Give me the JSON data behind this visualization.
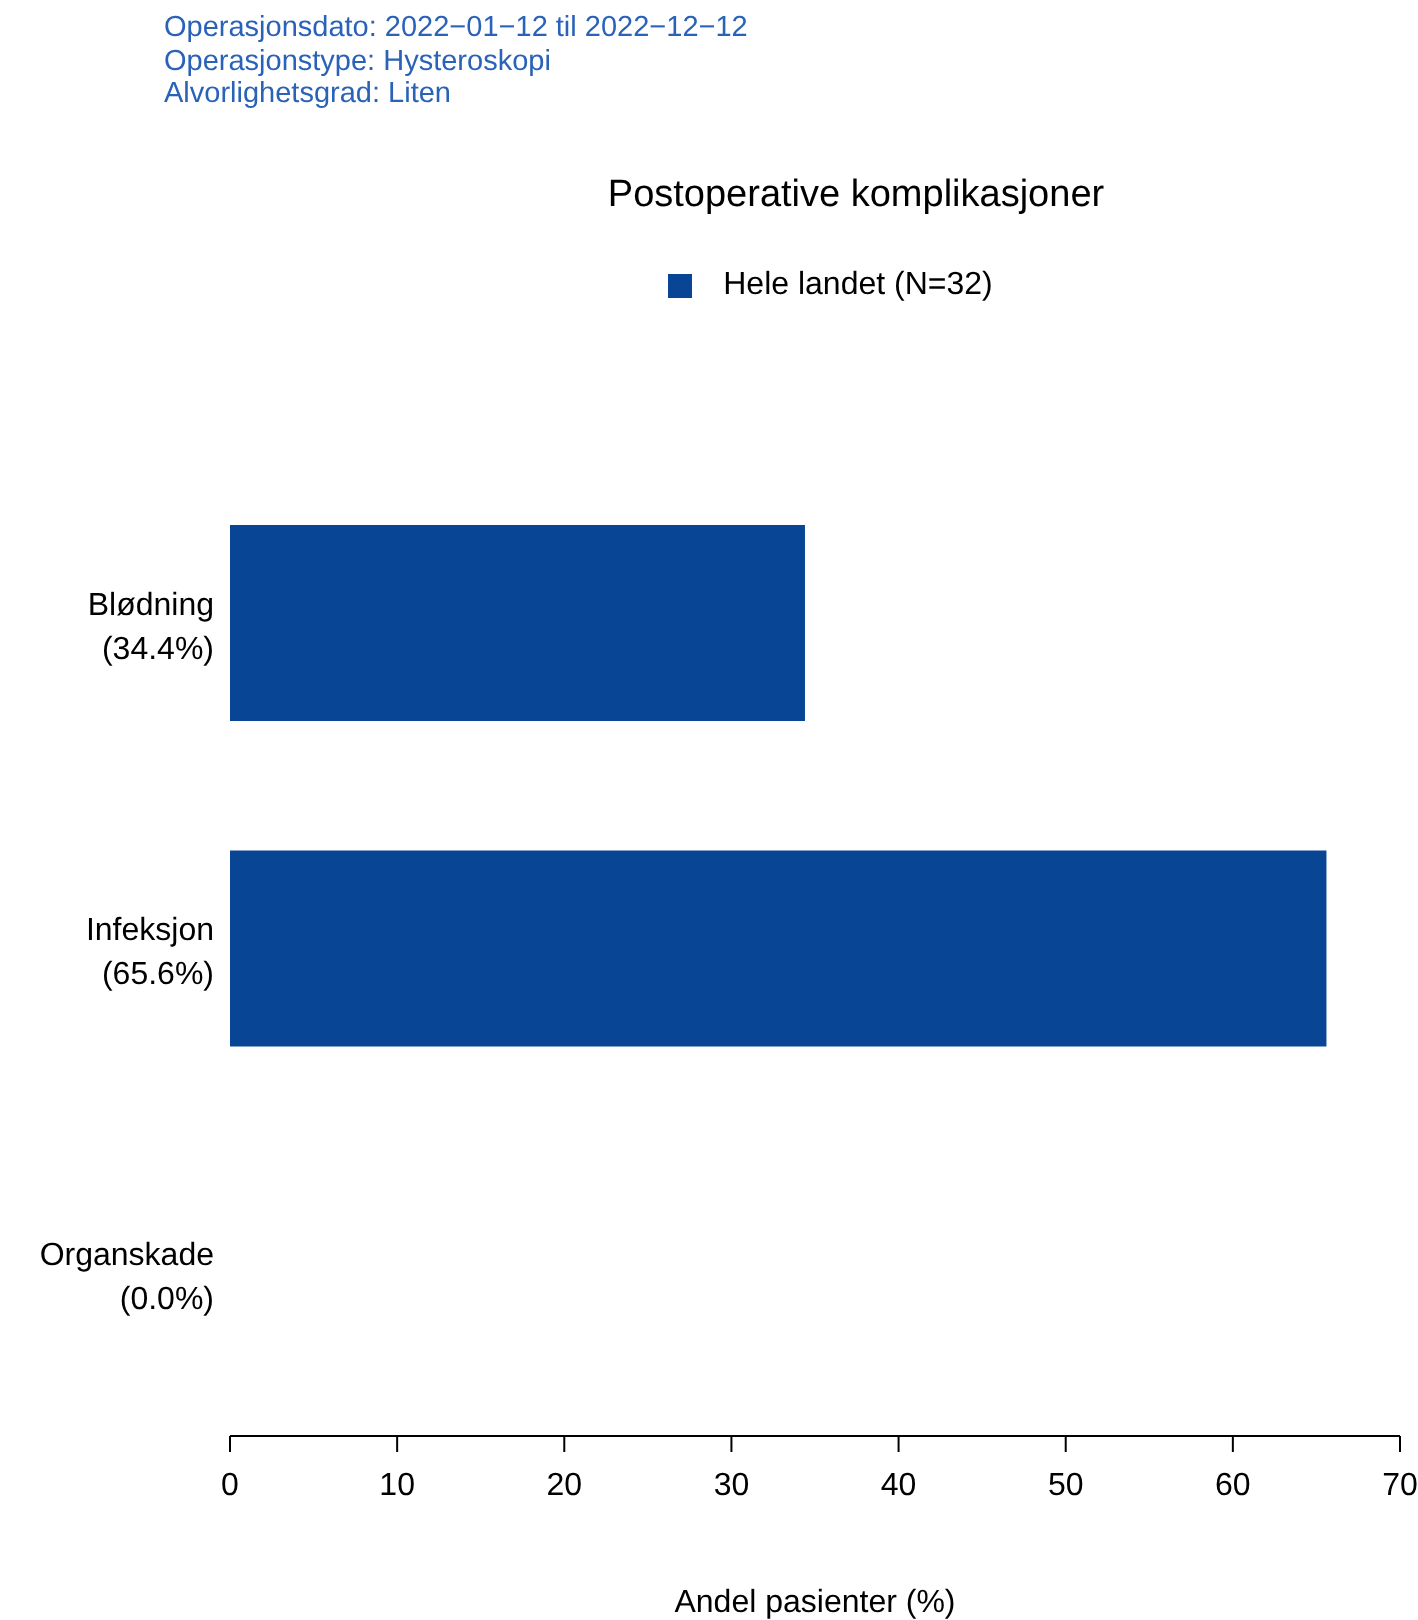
{
  "chart_data": {
    "type": "bar",
    "orientation": "horizontal",
    "title": "Postoperative komplikasjoner",
    "annotations": [
      "Operasjonsdato: 2022−01−12 til 2022−12−12",
      "Operasjonstype: Hysteroskopi",
      "Alvorlighetsgrad: Liten"
    ],
    "categories": [
      "Blødning",
      "Infeksjon",
      "Organskade"
    ],
    "series": [
      {
        "name": "Hele landet (N=32)",
        "color": "#084594",
        "values": [
          34.4,
          65.6,
          0
        ]
      }
    ],
    "value_labels": [
      "(34.4%)",
      "(65.6%)",
      "(0.0%)"
    ],
    "xlabel": "Andel pasienter (%)",
    "xlim": [
      0,
      70
    ],
    "xticks": [
      0,
      10,
      20,
      30,
      40,
      50,
      60,
      70
    ],
    "grid": false,
    "legend": "top"
  }
}
